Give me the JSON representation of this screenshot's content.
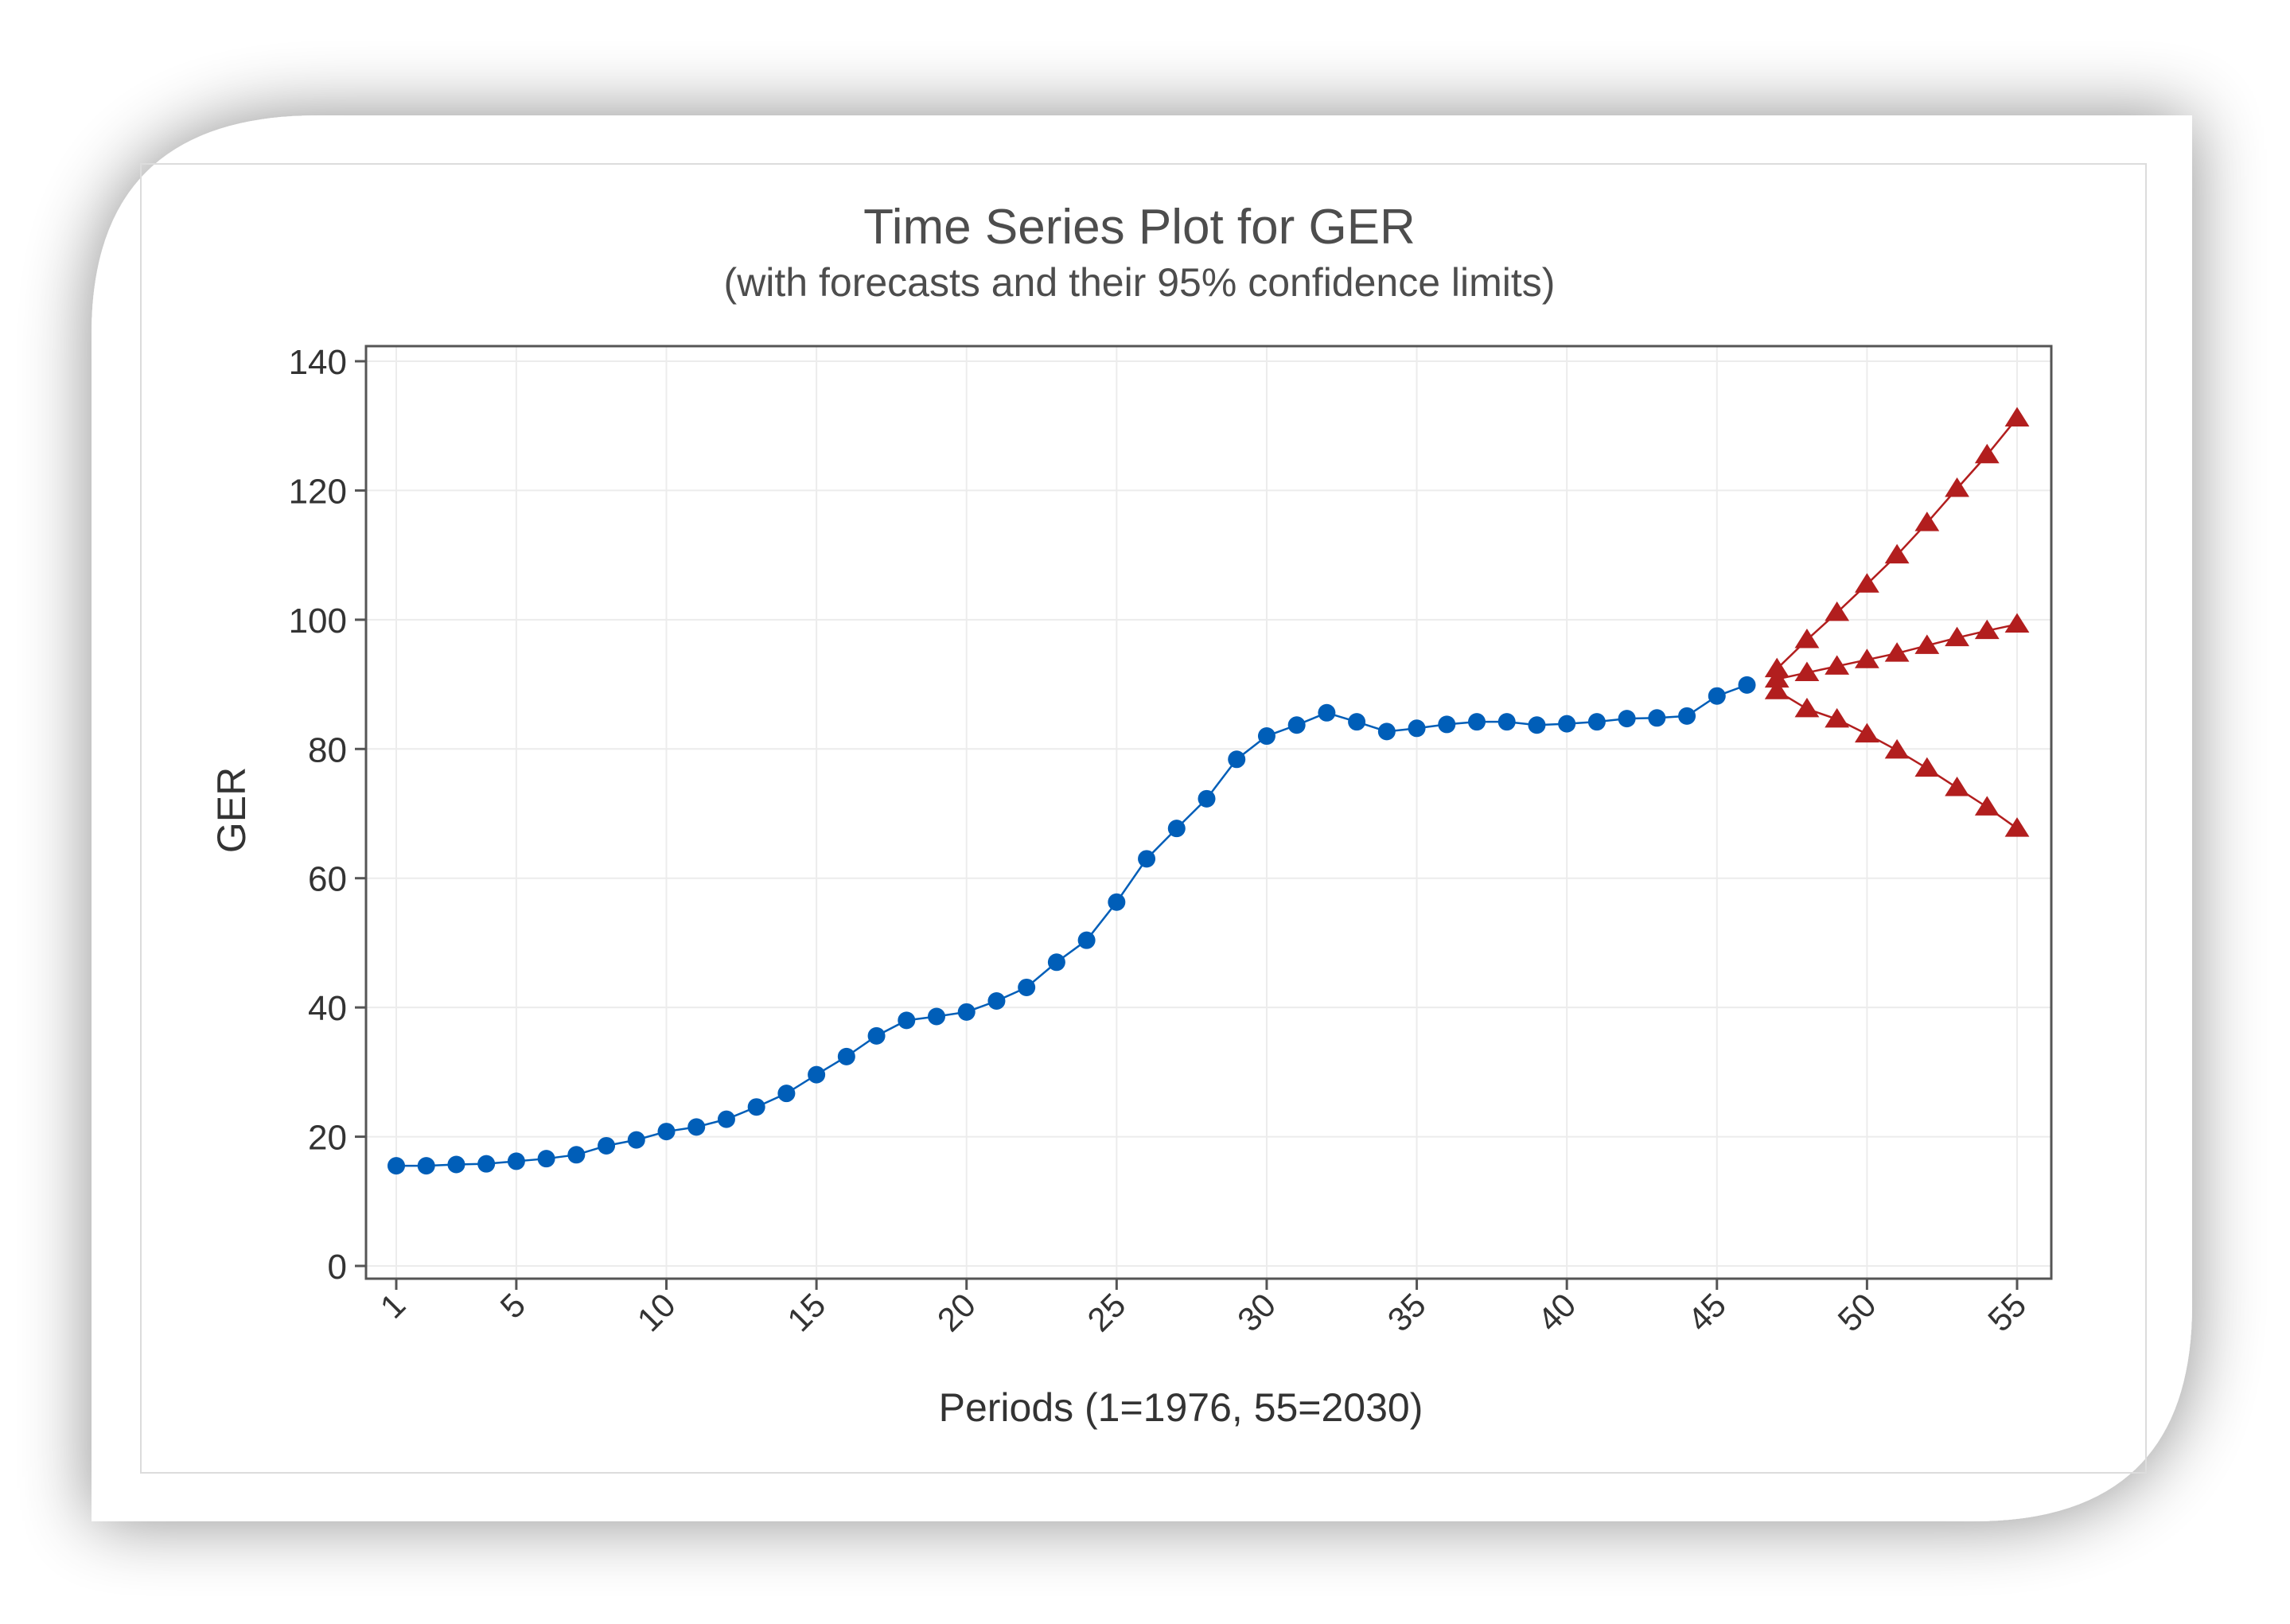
{
  "chart_data": {
    "type": "line",
    "title": "Time Series Plot for GER",
    "subtitle": "(with forecasts and their 95% confidence limits)",
    "xlabel": "Periods (1=1976, 55=2030)",
    "ylabel": "GER",
    "xlim": [
      0,
      56
    ],
    "ylim": [
      -2,
      143
    ],
    "x_ticks": [
      1,
      5,
      10,
      15,
      20,
      25,
      30,
      35,
      40,
      45,
      50,
      55
    ],
    "x_tick_labels": [
      "1",
      "5",
      "10",
      "15",
      "20",
      "25",
      "30",
      "35",
      "40",
      "45",
      "50",
      "55"
    ],
    "y_ticks": [
      0,
      20,
      40,
      60,
      80,
      100,
      120,
      140
    ],
    "y_tick_labels": [
      "0",
      "20",
      "40",
      "60",
      "80",
      "100",
      "120",
      "140"
    ],
    "grid": true,
    "series": [
      {
        "name": "Actual",
        "color": "#005eb8",
        "marker": "circle",
        "x": [
          1,
          2,
          3,
          4,
          5,
          6,
          7,
          8,
          9,
          10,
          11,
          12,
          13,
          14,
          15,
          16,
          17,
          18,
          19,
          20,
          21,
          22,
          23,
          24,
          25,
          26,
          27,
          28,
          29,
          30,
          31,
          32,
          33,
          34,
          35,
          36,
          37,
          38,
          39,
          40,
          41,
          42,
          43,
          44,
          45,
          46
        ],
        "values": [
          15.5,
          15.5,
          15.7,
          15.8,
          16.2,
          16.6,
          17.2,
          18.6,
          19.5,
          20.8,
          21.5,
          22.7,
          24.6,
          26.7,
          29.6,
          32.4,
          35.6,
          38,
          38.6,
          39.3,
          41,
          43.1,
          47,
          50.4,
          56.3,
          63,
          67.7,
          72.3,
          78.4,
          82,
          83.7,
          85.6,
          84.2,
          82.7,
          83.2,
          83.8,
          84.2,
          84.2,
          83.7,
          83.9,
          84.2,
          84.7,
          84.8,
          85.1,
          88.2,
          89.9
        ]
      },
      {
        "name": "Forecast",
        "color": "#b21e1e",
        "marker": "triangle",
        "x": [
          47,
          48,
          49,
          50,
          51,
          52,
          53,
          54,
          55
        ],
        "values": [
          90.8,
          91.8,
          92.8,
          93.8,
          94.8,
          96,
          97.2,
          98.3,
          99.3
        ]
      },
      {
        "name": "Upper 95% limit",
        "color": "#b21e1e",
        "marker": "triangle",
        "x": [
          47,
          48,
          49,
          50,
          51,
          52,
          53,
          54,
          55
        ],
        "values": [
          92.4,
          96.9,
          101.1,
          105.5,
          110,
          115,
          120.3,
          125.5,
          131.2
        ]
      },
      {
        "name": "Lower 95% limit",
        "color": "#b21e1e",
        "marker": "triangle",
        "x": [
          47,
          48,
          49,
          50,
          51,
          52,
          53,
          54,
          55
        ],
        "values": [
          89,
          86.2,
          84.6,
          82.3,
          79.8,
          77,
          74,
          71,
          67.7
        ]
      }
    ]
  }
}
